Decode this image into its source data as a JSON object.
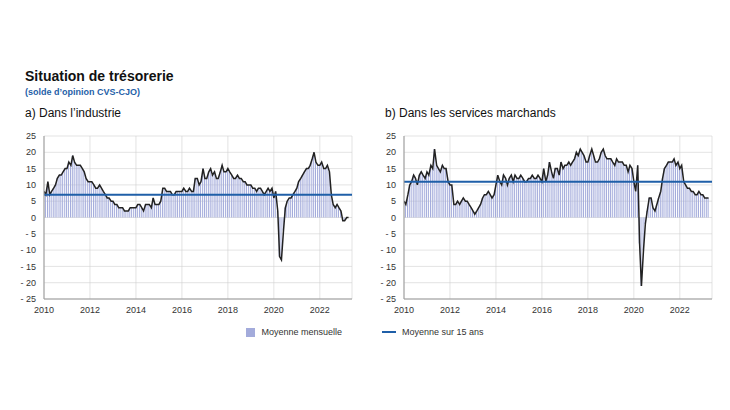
{
  "title": "Situation de trésorerie",
  "subtitle": "(solde d’opinion CVS-CJO)",
  "chart_data": [
    {
      "type": "bar",
      "title": "a) Dans l’industrie",
      "x": [
        2010,
        2010.08,
        2010.17,
        2010.25,
        2010.33,
        2010.42,
        2010.5,
        2010.58,
        2010.67,
        2010.75,
        2010.83,
        2010.92,
        2011,
        2011.08,
        2011.17,
        2011.25,
        2011.33,
        2011.42,
        2011.5,
        2011.58,
        2011.67,
        2011.75,
        2011.83,
        2011.92,
        2012,
        2012.08,
        2012.17,
        2012.25,
        2012.33,
        2012.42,
        2012.5,
        2012.58,
        2012.67,
        2012.75,
        2012.83,
        2012.92,
        2013,
        2013.08,
        2013.17,
        2013.25,
        2013.33,
        2013.42,
        2013.5,
        2013.58,
        2013.67,
        2013.75,
        2013.83,
        2013.92,
        2014,
        2014.08,
        2014.17,
        2014.25,
        2014.33,
        2014.42,
        2014.5,
        2014.58,
        2014.67,
        2014.75,
        2014.83,
        2014.92,
        2015,
        2015.08,
        2015.17,
        2015.25,
        2015.33,
        2015.42,
        2015.5,
        2015.58,
        2015.67,
        2015.75,
        2015.83,
        2015.92,
        2016,
        2016.08,
        2016.17,
        2016.25,
        2016.33,
        2016.42,
        2016.5,
        2016.58,
        2016.67,
        2016.75,
        2016.83,
        2016.92,
        2017,
        2017.08,
        2017.17,
        2017.25,
        2017.33,
        2017.42,
        2017.5,
        2017.58,
        2017.67,
        2017.75,
        2017.83,
        2017.92,
        2018,
        2018.08,
        2018.17,
        2018.25,
        2018.33,
        2018.42,
        2018.5,
        2018.58,
        2018.67,
        2018.75,
        2018.83,
        2018.92,
        2019,
        2019.08,
        2019.17,
        2019.25,
        2019.33,
        2019.42,
        2019.5,
        2019.58,
        2019.67,
        2019.75,
        2019.83,
        2019.92,
        2020,
        2020.08,
        2020.17,
        2020.25,
        2020.33,
        2020.42,
        2020.5,
        2020.58,
        2020.67,
        2020.75,
        2020.83,
        2020.92,
        2021,
        2021.08,
        2021.17,
        2021.25,
        2021.33,
        2021.42,
        2021.5,
        2021.58,
        2021.67,
        2021.75,
        2021.83,
        2021.92,
        2022,
        2022.08,
        2022.17,
        2022.25,
        2022.33,
        2022.42,
        2022.5,
        2022.58,
        2022.67,
        2022.75,
        2022.83,
        2022.92,
        2023,
        2023.08,
        2023.17,
        2023.25
      ],
      "series": [
        {
          "name": "Moyenne mensuelle",
          "type": "bar",
          "color": "#a3abdb",
          "values": [
            8,
            7,
            11,
            7,
            8,
            9,
            10,
            12,
            13,
            13,
            14,
            15,
            15,
            17,
            16,
            19,
            17,
            16,
            16,
            16,
            15,
            14,
            12,
            11,
            11,
            11,
            10,
            9,
            9,
            10,
            9,
            8,
            7,
            6,
            6,
            5,
            5,
            4,
            4,
            3,
            3,
            3,
            2,
            2,
            2,
            3,
            3,
            3,
            3,
            4,
            4,
            3,
            2,
            4,
            4,
            4,
            3,
            6,
            4,
            4,
            4,
            5,
            9,
            9,
            8,
            8,
            8,
            7,
            7,
            8,
            8,
            8,
            8,
            9,
            8,
            8,
            9,
            8,
            8,
            12,
            12,
            10,
            11,
            15,
            12,
            12,
            14,
            15,
            13,
            14,
            12,
            12,
            14,
            16,
            14,
            14,
            15,
            14,
            13,
            12,
            12,
            13,
            12,
            12,
            11,
            11,
            10,
            10,
            10,
            9,
            9,
            8,
            9,
            9,
            8,
            7,
            8,
            9,
            8,
            9,
            6,
            8,
            2,
            -12,
            -13,
            -4,
            3,
            5,
            6,
            6,
            7,
            8,
            9,
            11,
            12,
            13,
            14,
            15,
            15,
            16,
            18,
            20,
            17,
            16,
            16,
            17,
            15,
            15,
            16,
            14,
            7,
            4,
            3,
            4,
            3,
            2,
            -1,
            -1,
            0,
            0
          ]
        },
        {
          "name": "Moyenne sur 15 ans",
          "type": "hline",
          "color": "#1f5fa8",
          "value": 7
        }
      ],
      "xlim": [
        2010,
        2023.4
      ],
      "xticks": [
        2010,
        2012,
        2014,
        2016,
        2018,
        2020,
        2022
      ],
      "ylim": [
        -25,
        25
      ],
      "yticks": [
        {
          "value": -25,
          "label": "- 25"
        },
        {
          "value": -20,
          "label": "- 20"
        },
        {
          "value": -15,
          "label": "- 15"
        },
        {
          "value": -10,
          "label": "- 10"
        },
        {
          "value": -5,
          "label": "- 5"
        },
        0,
        5,
        10,
        15,
        20,
        25
      ],
      "grid": true
    },
    {
      "type": "bar",
      "title": "b) Dans les services marchands",
      "x": [
        2010,
        2010.08,
        2010.17,
        2010.25,
        2010.33,
        2010.42,
        2010.5,
        2010.58,
        2010.67,
        2010.75,
        2010.83,
        2010.92,
        2011,
        2011.08,
        2011.17,
        2011.25,
        2011.33,
        2011.42,
        2011.5,
        2011.58,
        2011.67,
        2011.75,
        2011.83,
        2011.92,
        2012,
        2012.08,
        2012.17,
        2012.25,
        2012.33,
        2012.42,
        2012.5,
        2012.58,
        2012.67,
        2012.75,
        2012.83,
        2012.92,
        2013,
        2013.08,
        2013.17,
        2013.25,
        2013.33,
        2013.42,
        2013.5,
        2013.58,
        2013.67,
        2013.75,
        2013.83,
        2013.92,
        2014,
        2014.08,
        2014.17,
        2014.25,
        2014.33,
        2014.42,
        2014.5,
        2014.58,
        2014.67,
        2014.75,
        2014.83,
        2014.92,
        2015,
        2015.08,
        2015.17,
        2015.25,
        2015.33,
        2015.42,
        2015.5,
        2015.58,
        2015.67,
        2015.75,
        2015.83,
        2015.92,
        2016,
        2016.08,
        2016.17,
        2016.25,
        2016.33,
        2016.42,
        2016.5,
        2016.58,
        2016.67,
        2016.75,
        2016.83,
        2016.92,
        2017,
        2017.08,
        2017.17,
        2017.25,
        2017.33,
        2017.42,
        2017.5,
        2017.58,
        2017.67,
        2017.75,
        2017.83,
        2017.92,
        2018,
        2018.08,
        2018.17,
        2018.25,
        2018.33,
        2018.42,
        2018.5,
        2018.58,
        2018.67,
        2018.75,
        2018.83,
        2018.92,
        2019,
        2019.08,
        2019.17,
        2019.25,
        2019.33,
        2019.42,
        2019.5,
        2019.58,
        2019.67,
        2019.75,
        2019.83,
        2019.92,
        2020,
        2020.08,
        2020.17,
        2020.25,
        2020.33,
        2020.42,
        2020.5,
        2020.58,
        2020.67,
        2020.75,
        2020.83,
        2020.92,
        2021,
        2021.08,
        2021.17,
        2021.25,
        2021.33,
        2021.42,
        2021.5,
        2021.58,
        2021.67,
        2021.75,
        2021.83,
        2021.92,
        2022,
        2022.08,
        2022.17,
        2022.25,
        2022.33,
        2022.42,
        2022.5,
        2022.58,
        2022.67,
        2022.75,
        2022.83,
        2022.92,
        2023,
        2023.08,
        2023.17,
        2023.25
      ],
      "series": [
        {
          "name": "Moyenne mensuelle",
          "type": "bar",
          "color": "#a3abdb",
          "values": [
            5,
            4,
            7,
            10,
            11,
            13,
            12,
            10,
            13,
            14,
            13,
            12,
            14,
            13,
            16,
            15,
            21,
            16,
            15,
            14,
            16,
            15,
            15,
            11,
            10,
            10,
            4,
            4,
            5,
            4,
            5,
            6,
            5,
            5,
            4,
            3,
            2,
            1,
            2,
            3,
            4,
            6,
            7,
            7,
            8,
            7,
            6,
            7,
            10,
            13,
            11,
            10,
            13,
            12,
            10,
            12,
            13,
            11,
            13,
            12,
            12,
            13,
            12,
            11,
            11,
            12,
            12,
            13,
            12,
            12,
            13,
            12,
            11,
            15,
            11,
            13,
            17,
            14,
            12,
            15,
            15,
            13,
            17,
            15,
            16,
            16,
            17,
            16,
            17,
            18,
            20,
            19,
            21,
            20,
            19,
            17,
            17,
            19,
            21,
            19,
            17,
            17,
            18,
            20,
            21,
            19,
            18,
            18,
            18,
            17,
            16,
            18,
            17,
            17,
            17,
            16,
            16,
            14,
            16,
            15,
            11,
            8,
            16,
            -8,
            -21,
            -10,
            -2,
            2,
            6,
            6,
            3,
            2,
            4,
            6,
            8,
            12,
            15,
            16,
            17,
            17,
            17,
            18,
            16,
            17,
            15,
            16,
            11,
            10,
            9,
            9,
            8,
            8,
            7,
            7,
            8,
            7,
            7,
            6,
            6,
            6
          ]
        },
        {
          "name": "Moyenne sur 15 ans",
          "type": "hline",
          "color": "#1f5fa8",
          "value": 11
        }
      ],
      "xlim": [
        2010,
        2023.4
      ],
      "xticks": [
        2010,
        2012,
        2014,
        2016,
        2018,
        2020,
        2022
      ],
      "ylim": [
        -25,
        25
      ],
      "yticks": [
        {
          "value": -25,
          "label": "- 25"
        },
        {
          "value": -20,
          "label": "- 20"
        },
        {
          "value": -15,
          "label": "- 15"
        },
        {
          "value": -10,
          "label": "- 10"
        },
        {
          "value": -5,
          "label": "- 5"
        },
        0,
        5,
        10,
        15,
        20,
        25
      ],
      "grid": true
    }
  ]
}
